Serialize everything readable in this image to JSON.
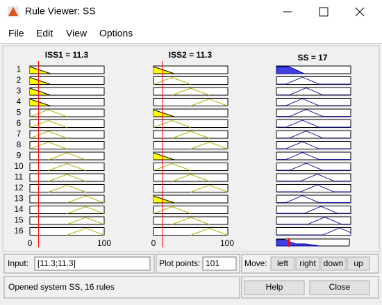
{
  "window": {
    "title": "Rule Viewer: SS"
  },
  "menu": [
    "File",
    "Edit",
    "View",
    "Options"
  ],
  "plots": {
    "headers": [
      "ISS1 = 11.3",
      "ISS2 = 11.3",
      "SS = 17"
    ],
    "rules": [
      "1",
      "2",
      "3",
      "4",
      "5",
      "6",
      "7",
      "8",
      "9",
      "10",
      "11",
      "12",
      "13",
      "14",
      "15",
      "16"
    ],
    "axis_labels": [
      "0",
      "100",
      "0",
      "100"
    ]
  },
  "controls": {
    "input_label": "Input:",
    "input_value": "[11.3;11.3]",
    "plot_points_label": "Plot points:",
    "plot_points_value": "101",
    "move_label": "Move:",
    "move_buttons": [
      "left",
      "right",
      "down",
      "up"
    ],
    "status": "Opened system SS, 16 rules",
    "help": "Help",
    "close": "Close"
  }
}
